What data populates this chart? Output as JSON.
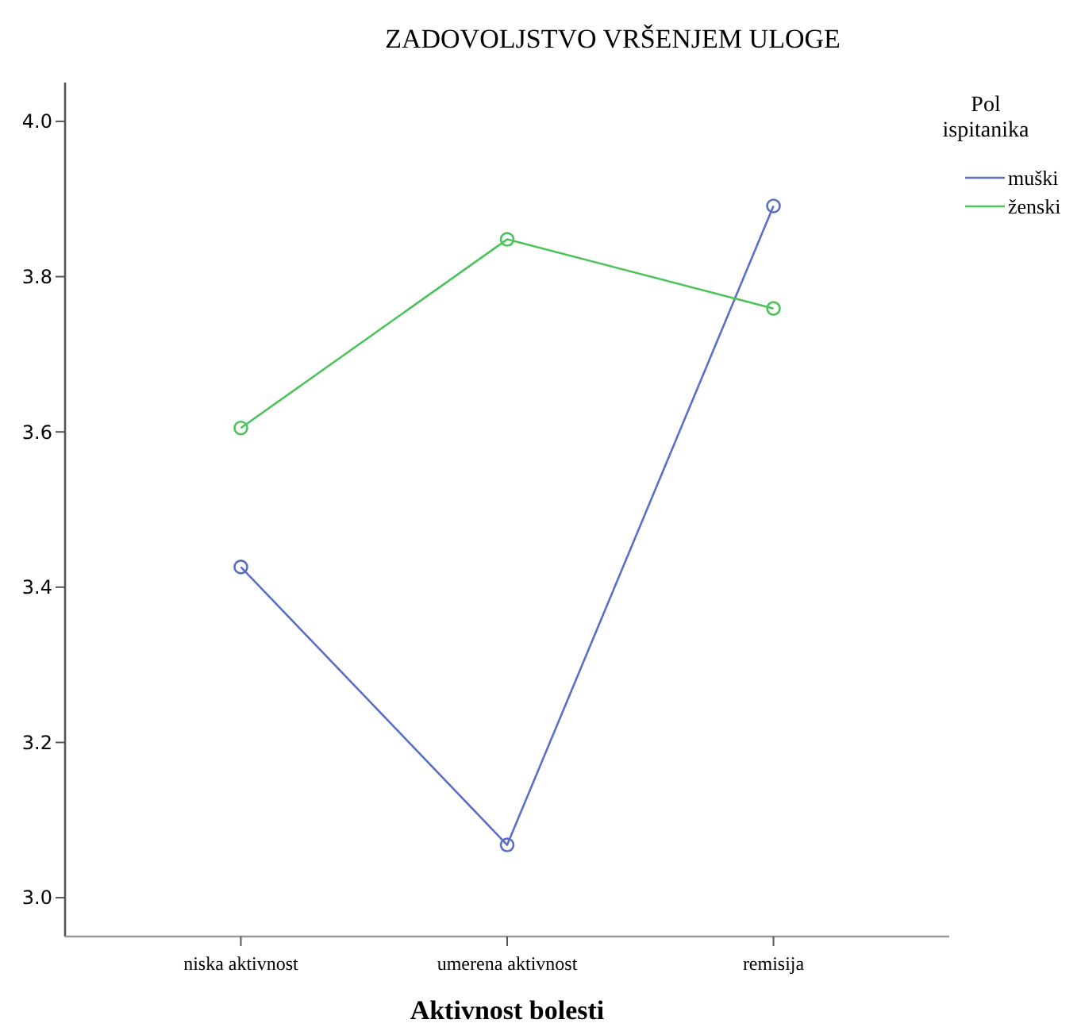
{
  "chart_data": {
    "type": "line",
    "title": "ZADOVOLJSTVO VRŠENJEM ULOGE",
    "xlabel": "Aktivnost bolesti",
    "legend_title": "Pol ispitanika",
    "legend": "right",
    "marker": "circle",
    "grid": false,
    "categories": [
      "niska aktivnost",
      "umerena aktivnost",
      "remisija"
    ],
    "series": [
      {
        "name": "muški",
        "color": "#5b6fc6",
        "values": [
          3.426,
          3.068,
          3.891
        ]
      },
      {
        "name": "ženski",
        "color": "#4cc35a",
        "values": [
          3.605,
          3.848,
          3.759
        ]
      }
    ],
    "ylim": [
      2.95,
      4.05
    ],
    "yticks": [
      {
        "value": 3,
        "label": "3.0"
      },
      {
        "value": 3.2,
        "label": "3.2"
      },
      {
        "value": 3.4,
        "label": "3.4"
      },
      {
        "value": 3.6,
        "label": "3.6"
      },
      {
        "value": 3.8,
        "label": "3.8"
      },
      {
        "value": 4,
        "label": "4.0"
      }
    ]
  }
}
